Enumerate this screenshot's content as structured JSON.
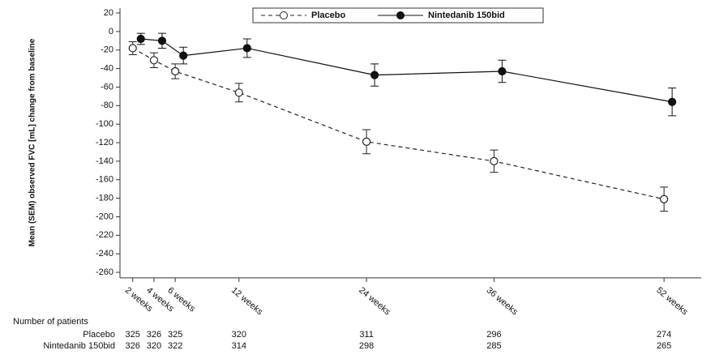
{
  "chart_data": {
    "type": "line",
    "y_label": "Mean (SEM) observed FVC [mL] change from baseline",
    "x": [
      2,
      4,
      6,
      12,
      24,
      36,
      52
    ],
    "xlim": [
      0.8,
      55.5
    ],
    "xticks": [
      {
        "value": 2,
        "label": "2 weeks"
      },
      {
        "value": 4,
        "label": "4 weeks"
      },
      {
        "value": 6,
        "label": "6 weeks"
      },
      {
        "value": 12,
        "label": "12 weeks"
      },
      {
        "value": 24,
        "label": "24 weeks"
      },
      {
        "value": 36,
        "label": "36 weeks"
      },
      {
        "value": 52,
        "label": "52 weeks"
      }
    ],
    "ylim": [
      -266,
      25
    ],
    "yticks": [
      20,
      0,
      -20,
      -40,
      -60,
      -80,
      -100,
      -120,
      -140,
      -160,
      -180,
      -200,
      -220,
      -240,
      -260
    ],
    "legend_position": "top",
    "series": [
      {
        "name": "Placebo",
        "color": "#222222",
        "dashed": true,
        "filled": false,
        "values": [
          -18,
          -31,
          -43,
          -66,
          -119,
          -140,
          -181
        ],
        "errors": [
          7,
          8,
          8,
          10,
          13,
          12,
          13
        ]
      },
      {
        "name": "Nintedanib 150bid",
        "color": "#111111",
        "dashed": false,
        "filled": true,
        "values": [
          -8,
          -10,
          -26,
          -18,
          -47,
          -43,
          -76
        ],
        "errors": [
          6,
          8,
          9,
          10,
          12,
          12,
          15
        ]
      }
    ],
    "patients": {
      "title": "Number of patients",
      "rows": [
        {
          "name": "Placebo",
          "counts": [
            325,
            326,
            325,
            320,
            311,
            296,
            274
          ]
        },
        {
          "name": "Nintedanib 150bid",
          "counts": [
            326,
            320,
            322,
            314,
            298,
            285,
            265
          ]
        }
      ]
    }
  }
}
